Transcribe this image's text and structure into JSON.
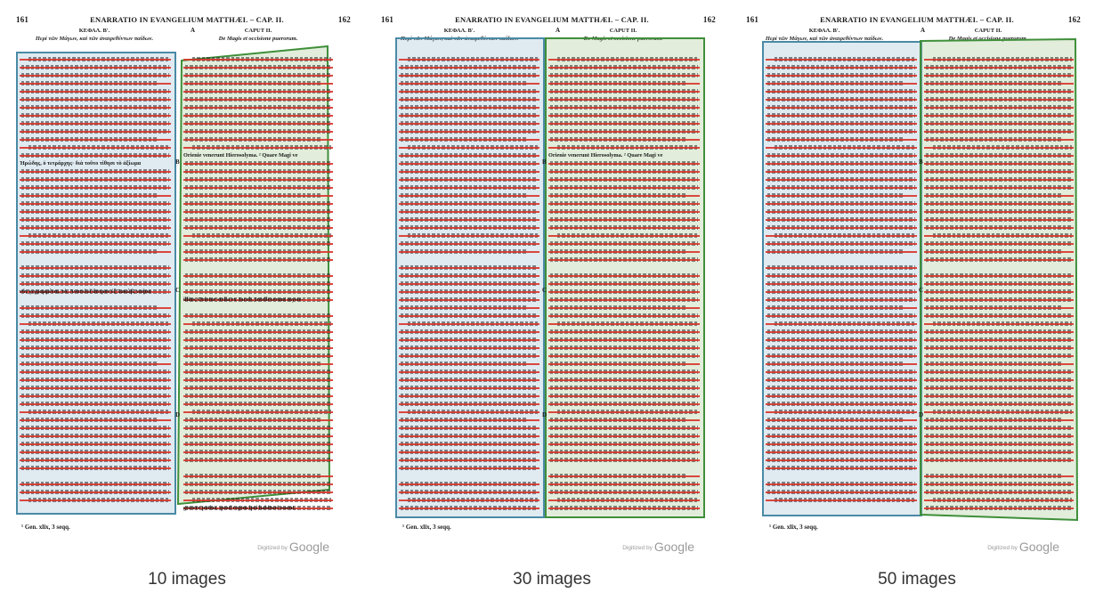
{
  "page": {
    "page_left": "161",
    "page_right": "162",
    "running_title": "ENARRATIO IN EVANGELIUM MATTHÆI. – CAP. II.",
    "col_left_head": "ΚΕΦΑΛ. Β'.",
    "col_left_sub": "Περὶ τῶν Μάγων, καὶ τῶν ἀναιρεθέντων παίδων.",
    "col_right_head": "CAPUT II.",
    "col_right_sub": "De Magis et occisione puerorum.",
    "mark_a": "A",
    "mark_b": "B",
    "mark_c": "C",
    "mark_d": "D",
    "footnote": "¹ Gen. xlix, 3 seqq.",
    "digitized_prefix": "Digitized by",
    "digitized_brand": "Google",
    "lat_line_1": "Orienie venerunt Hierosolyma. ² Quare Magi ve",
    "lat_line_2": "illius, Orietur stella ex Jacob, Intellexerunt myste-",
    "lat_last": "gessere potius, quod regem ipsi habituri essent,",
    "grk_line_1": "Ἡρώδης, ὁ τετράρχης· διὰ τοῦτο τίθησι τὸ ἀξίωμα",
    "grk_line_2": "νῦν γεγραμμέναι, τὸ, Ἀνατελεῖ ἄστρον ἐξ Ἰακώβ, νοήσα"
  },
  "panels": [
    {
      "caption": "10 images",
      "left_color": "#4a8aa6",
      "right_color": "#3f8f3a"
    },
    {
      "caption": "30 images",
      "left_color": "#4a8aa6",
      "right_color": "#3f8f3a"
    },
    {
      "caption": "50 images",
      "left_color": "#4a8aa6",
      "right_color": "#3f8f3a"
    }
  ]
}
